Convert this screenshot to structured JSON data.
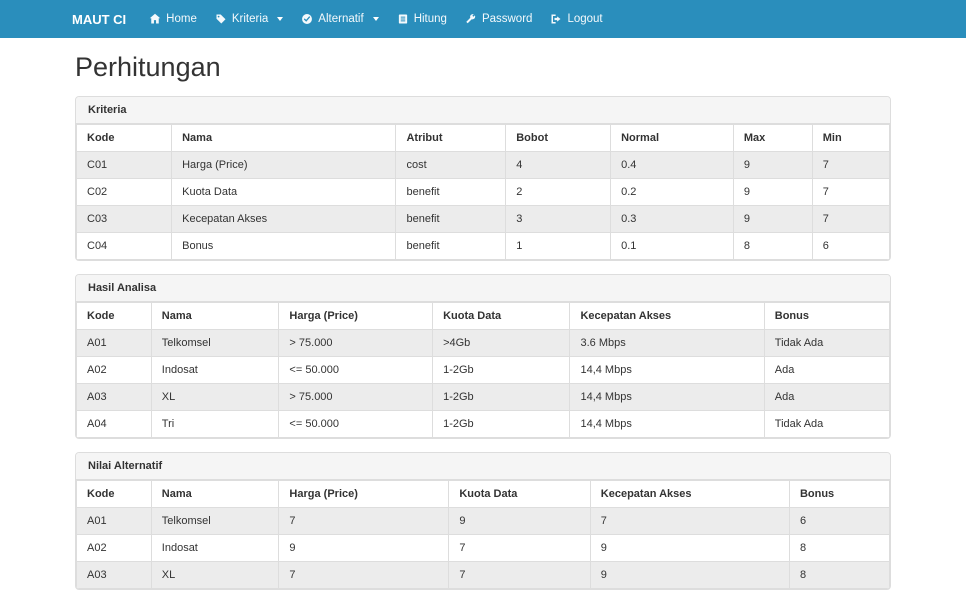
{
  "colors": {
    "navbar": "#2a8ebc",
    "stripe": "#ececec",
    "border": "#dddddd",
    "panel_head": "#f5f5f5"
  },
  "navbar": {
    "brand": "MAUT CI",
    "items": [
      {
        "label": "Home",
        "icon": "home-icon",
        "dropdown": false
      },
      {
        "label": "Kriteria",
        "icon": "tag-icon",
        "dropdown": true
      },
      {
        "label": "Alternatif",
        "icon": "check-circle-icon",
        "dropdown": true
      },
      {
        "label": "Hitung",
        "icon": "list-icon",
        "dropdown": false
      },
      {
        "label": "Password",
        "icon": "wrench-icon",
        "dropdown": false
      },
      {
        "label": "Logout",
        "icon": "logout-icon",
        "dropdown": false
      }
    ]
  },
  "page": {
    "title": "Perhitungan"
  },
  "panels": [
    {
      "title": "Kriteria",
      "columns": [
        "Kode",
        "Nama",
        "Atribut",
        "Bobot",
        "Normal",
        "Max",
        "Min"
      ],
      "rows": [
        [
          "C01",
          "Harga (Price)",
          "cost",
          "4",
          "0.4",
          "9",
          "7"
        ],
        [
          "C02",
          "Kuota Data",
          "benefit",
          "2",
          "0.2",
          "9",
          "7"
        ],
        [
          "C03",
          "Kecepatan Akses",
          "benefit",
          "3",
          "0.3",
          "9",
          "7"
        ],
        [
          "C04",
          "Bonus",
          "benefit",
          "1",
          "0.1",
          "8",
          "6"
        ]
      ]
    },
    {
      "title": "Hasil Analisa",
      "columns": [
        "Kode",
        "Nama",
        "Harga (Price)",
        "Kuota Data",
        "Kecepatan Akses",
        "Bonus"
      ],
      "rows": [
        [
          "A01",
          "Telkomsel",
          "> 75.000",
          ">4Gb",
          "3.6 Mbps",
          "Tidak Ada"
        ],
        [
          "A02",
          "Indosat",
          "<= 50.000",
          "1-2Gb",
          "14,4 Mbps",
          "Ada"
        ],
        [
          "A03",
          "XL",
          "> 75.000",
          "1-2Gb",
          "14,4 Mbps",
          "Ada"
        ],
        [
          "A04",
          "Tri",
          "<= 50.000",
          "1-2Gb",
          "14,4 Mbps",
          "Tidak Ada"
        ]
      ]
    },
    {
      "title": "Nilai Alternatif",
      "columns": [
        "Kode",
        "Nama",
        "Harga (Price)",
        "Kuota Data",
        "Kecepatan Akses",
        "Bonus"
      ],
      "rows": [
        [
          "A01",
          "Telkomsel",
          "7",
          "9",
          "7",
          "6"
        ],
        [
          "A02",
          "Indosat",
          "9",
          "7",
          "9",
          "8"
        ],
        [
          "A03",
          "XL",
          "7",
          "7",
          "9",
          "8"
        ]
      ]
    }
  ]
}
